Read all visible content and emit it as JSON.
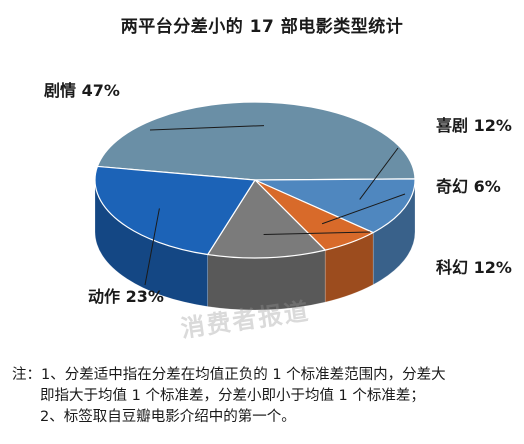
{
  "title": "两平台分差小的 17 部电影类型统计",
  "watermark": "消费者报道",
  "chart_data": {
    "type": "pie",
    "style": "3d",
    "categories": [
      "剧情",
      "喜剧",
      "奇幻",
      "科幻",
      "动作"
    ],
    "values": [
      47,
      12,
      6,
      12,
      23
    ],
    "labels": [
      "剧情 47%",
      "喜剧 12%",
      "奇幻 6%",
      "科幻 12%",
      "动作 23%"
    ],
    "colors": [
      "#6a8fa6",
      "#4f87bf",
      "#d86a2a",
      "#7b7b7b",
      "#1c63b7"
    ]
  },
  "notes": {
    "prefix": "注：",
    "line1": "1、分差适中指在分差在均值正负的 1 个标准差范围内，分差大",
    "line2": "即指大于均值 1 个标准差，分差小即小于均值 1 个标准差；",
    "line3": "2、标签取自豆瓣电影介绍中的第一个。"
  }
}
